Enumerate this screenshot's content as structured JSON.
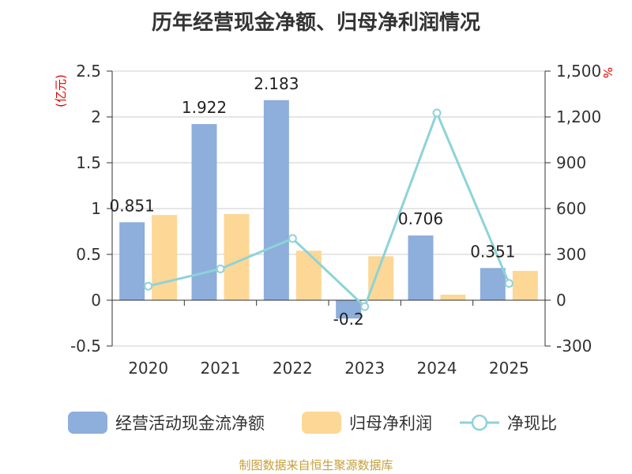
{
  "chart_data": {
    "type": "bar",
    "title": "历年经营现金净额、归母净利润情况",
    "categories": [
      "2020",
      "2021",
      "2022",
      "2023",
      "2024",
      "2025"
    ],
    "series": [
      {
        "name": "经营活动现金流净额",
        "type": "bar",
        "axis": "left",
        "color": "#8eaedb",
        "values": [
          0.851,
          1.922,
          2.183,
          -0.2,
          0.706,
          0.351
        ],
        "labels": [
          "0.851",
          "1.922",
          "2.183",
          "-0.2",
          "0.706",
          "0.351"
        ]
      },
      {
        "name": "归母净利润",
        "type": "bar",
        "axis": "left",
        "color": "#fdd796",
        "values": [
          0.93,
          0.94,
          0.54,
          0.48,
          0.06,
          0.32
        ]
      },
      {
        "name": "净现比",
        "type": "line",
        "axis": "right",
        "color": "#8dd3d8",
        "values": [
          92,
          205,
          404,
          -42,
          1226,
          110
        ]
      }
    ],
    "left_axis": {
      "unit": "(亿元)",
      "min": -0.5,
      "max": 2.5,
      "ticks": [
        "-0.5",
        "0",
        "0.5",
        "1",
        "1.5",
        "2",
        "2.5"
      ]
    },
    "right_axis": {
      "unit": "%",
      "min": -300,
      "max": 1500,
      "ticks": [
        "-300",
        "0",
        "300",
        "600",
        "900",
        "1,200",
        "1,500"
      ]
    },
    "grid": true,
    "legend_position": "bottom"
  },
  "source_text": "制图数据来自恒生聚源数据库"
}
